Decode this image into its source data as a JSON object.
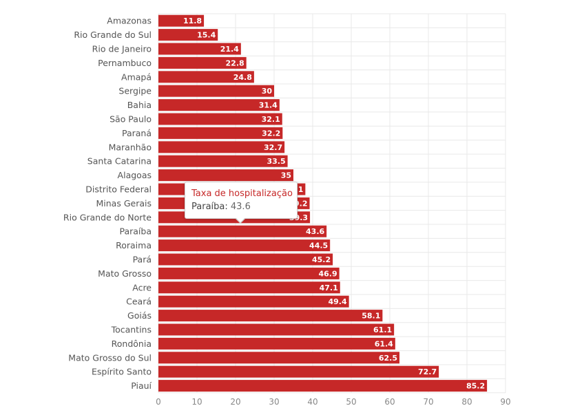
{
  "chart_data": {
    "type": "bar",
    "orientation": "horizontal",
    "title": "",
    "xlabel": "",
    "ylabel": "",
    "xlim": [
      0,
      90
    ],
    "x_ticks": [
      0,
      10,
      20,
      30,
      40,
      50,
      60,
      70,
      80,
      90
    ],
    "grid": true,
    "legend": "none",
    "bar_color": "#c62828",
    "categories": [
      "Amazonas",
      "Rio Grande do Sul",
      "Rio de Janeiro",
      "Pernambuco",
      "Amapá",
      "Sergipe",
      "Bahia",
      "São Paulo",
      "Paraná",
      "Maranhão",
      "Santa Catarina",
      "Alagoas",
      "Distrito Federal",
      "Minas Gerais",
      "Rio Grande do Norte",
      "Paraíba",
      "Roraima",
      "Pará",
      "Mato Grosso",
      "Acre",
      "Ceará",
      "Goiás",
      "Tocantins",
      "Rondônia",
      "Mato Grosso do Sul",
      "Espírito Santo",
      "Piauí"
    ],
    "values": [
      11.8,
      15.4,
      21.4,
      22.8,
      24.8,
      30,
      31.4,
      32.1,
      32.2,
      32.7,
      33.5,
      35,
      38.1,
      39.2,
      39.3,
      43.6,
      44.5,
      45.2,
      46.9,
      47.1,
      49.4,
      58.1,
      61.1,
      61.4,
      62.5,
      72.7,
      85.2
    ],
    "series": [
      {
        "name": "Taxa de hospitalização"
      }
    ]
  },
  "tooltip": {
    "title": "Taxa de hospitalização",
    "label": "Paraíba:",
    "value": "43.6"
  }
}
